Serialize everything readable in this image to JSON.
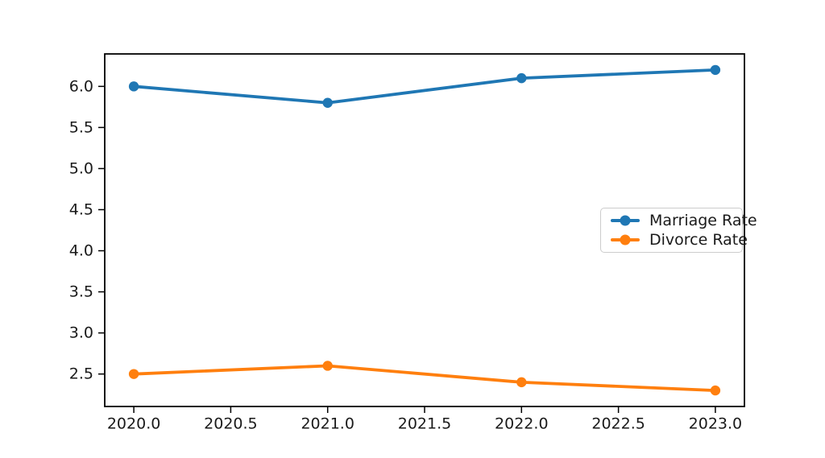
{
  "chart_data": {
    "type": "line",
    "x": [
      2020,
      2021,
      2022,
      2023
    ],
    "series": [
      {
        "name": "Marriage Rate",
        "values": [
          6.0,
          5.8,
          6.1,
          6.2
        ],
        "color": "#1f77b4"
      },
      {
        "name": "Divorce Rate",
        "values": [
          2.5,
          2.6,
          2.4,
          2.3
        ],
        "color": "#ff7f0e"
      }
    ],
    "title": "",
    "xlabel": "",
    "ylabel": "",
    "xlim": [
      2019.85,
      2023.15
    ],
    "ylim": [
      2.105,
      6.395
    ],
    "xticks": {
      "values": [
        2020.0,
        2020.5,
        2021.0,
        2021.5,
        2022.0,
        2022.5,
        2023.0
      ],
      "labels": [
        "2020.0",
        "2020.5",
        "2021.0",
        "2021.5",
        "2022.0",
        "2022.5",
        "2023.0"
      ]
    },
    "yticks": {
      "values": [
        2.5,
        3.0,
        3.5,
        4.0,
        4.5,
        5.0,
        5.5,
        6.0
      ],
      "labels": [
        "2.5",
        "3.0",
        "3.5",
        "4.0",
        "4.5",
        "5.0",
        "5.5",
        "6.0"
      ]
    },
    "grid": false,
    "marker": "circle",
    "legend": {
      "position": "center right",
      "entries": [
        "Marriage Rate",
        "Divorce Rate"
      ]
    },
    "colors": {
      "axis": "#000000",
      "tick_text": "#1a1a1a",
      "legend_border": "#cccccc",
      "background": "#ffffff"
    }
  }
}
